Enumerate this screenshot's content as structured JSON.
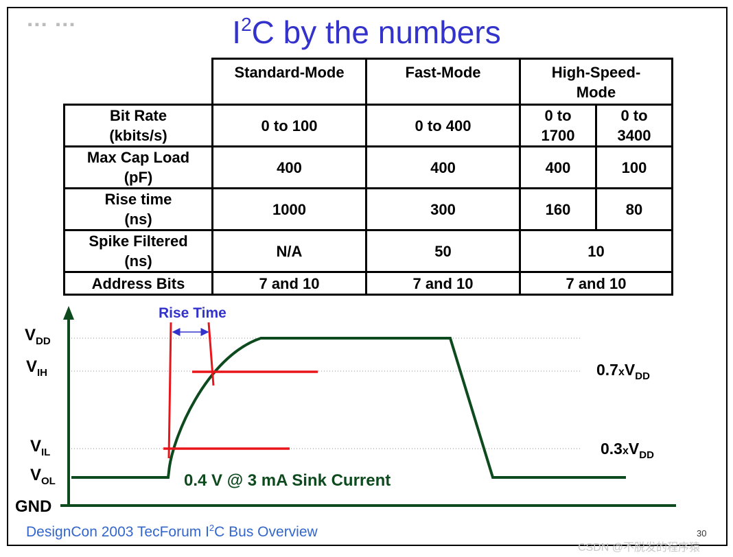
{
  "slide": {
    "logo": "▪▪▪ ▪▪▪",
    "title_pre": "I",
    "title_sup": "2",
    "title_post": "C by the numbers",
    "page_number": "30",
    "footer_parts": [
      "DesignCon 2003  TecForum  I",
      "2",
      "C Bus Overview"
    ],
    "watermark": "CSDN @不脱发的程序猿"
  },
  "table": {
    "headers": {
      "standard": "Standard-Mode",
      "fast": "Fast-Mode",
      "high_speed": "High-Speed-Mode"
    },
    "rows": [
      {
        "label": "Bit Rate (kbits/s)",
        "standard": "0 to 100",
        "fast": "0 to 400",
        "hs1": "0 to 1700",
        "hs2": "0 to 3400"
      },
      {
        "label": "Max Cap Load (pF)",
        "standard": "400",
        "fast": "400",
        "hs1": "400",
        "hs2": "100"
      },
      {
        "label": "Rise time (ns)",
        "standard": "1000",
        "fast": "300",
        "hs1": "160",
        "hs2": "80"
      },
      {
        "label": "Spike Filtered (ns)",
        "standard": "N/A",
        "fast": "50",
        "hs": "10"
      },
      {
        "label": "Address Bits",
        "standard": "7 and 10",
        "fast": "7 and 10",
        "hs": "7 and 10"
      }
    ]
  },
  "diagram": {
    "rise_time_label": "Rise Time",
    "levels": {
      "vdd": {
        "main": "V",
        "sub": "DD"
      },
      "vih": {
        "main": "V",
        "sub": "IH"
      },
      "vil": {
        "main": "V",
        "sub": "IL"
      },
      "vol": {
        "main": "V",
        "sub": "OL"
      },
      "gnd": "GND"
    },
    "vih_value": {
      "coef": "0.7",
      "x": "x",
      "v": "V",
      "sub": "DD"
    },
    "vil_value": {
      "coef": "0.3",
      "x": "x",
      "v": "V",
      "sub": "DD"
    },
    "sink_current": "0.4 V @ 3 mA Sink Current",
    "colors": {
      "signal": "#0d4a1e",
      "marker": "#e8161b",
      "arrow": "#3333cc",
      "title": "#3333cc"
    }
  }
}
